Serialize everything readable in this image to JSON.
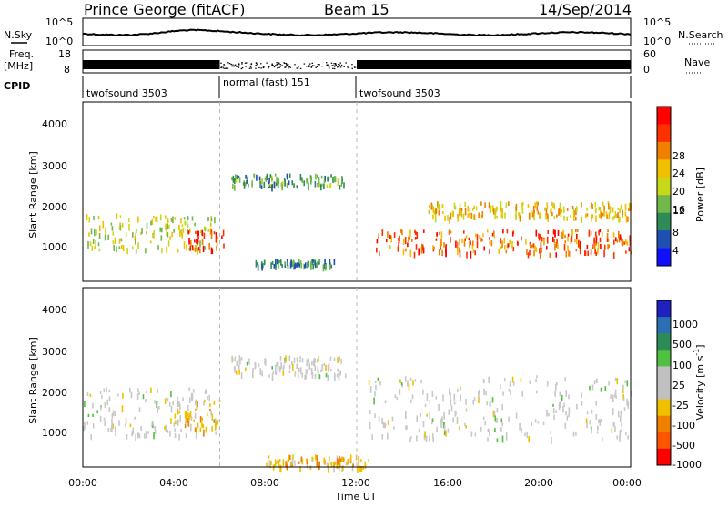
{
  "header": {
    "station": "Prince George (fitACF)",
    "beam": "Beam 15",
    "date": "14/Sep/2014"
  },
  "strip_labels": {
    "nsky": "N.Sky",
    "nsearch": "N.Search",
    "freq_top": "Freq.",
    "freq_unit": "[MHz]",
    "nave": "Nave",
    "cpid": "CPID",
    "nsky_ticks": [
      "10^5",
      "10^0"
    ],
    "nsearch_ticks": [
      "10^5",
      "10^0"
    ],
    "freq_ticks": [
      "18",
      "8"
    ],
    "nave_ticks": [
      "60",
      "0"
    ]
  },
  "cpid_segments": [
    {
      "label": "twofsound 3503",
      "start": 0,
      "end": 6
    },
    {
      "label": "normal (fast) 151",
      "start": 6,
      "end": 12
    },
    {
      "label": "twofsound 3503",
      "start": 12,
      "end": 24
    }
  ],
  "x_axis": {
    "title": "Time UT",
    "ticks": [
      "00:00",
      "04:00",
      "08:00",
      "12:00",
      "16:00",
      "20:00",
      "00:00"
    ],
    "range_hours": [
      0,
      24
    ]
  },
  "panels": {
    "power": {
      "ylabel": "Slant Range [km]",
      "yticks": [
        "4000",
        "3000",
        "2000",
        "1000"
      ],
      "cb_title": "Power [dB]",
      "cb_ticks": [
        "28",
        "24",
        "20",
        "16",
        "12",
        "8",
        "4"
      ]
    },
    "velocity": {
      "ylabel": "Slant Range [km]",
      "yticks": [
        "4000",
        "3000",
        "2000",
        "1000"
      ],
      "cb_title_main": "Velocity [m s",
      "cb_title_sup": "-1",
      "cb_title_end": "]",
      "cb_ticks": [
        "1000",
        "500",
        "100",
        "25",
        "-25",
        "-100",
        "-500",
        "-1000"
      ]
    }
  },
  "colors": {
    "power_scale": [
      "#1010ff",
      "#1f4fb0",
      "#2e8b57",
      "#70b84a",
      "#c8d818",
      "#f0c000",
      "#f08000",
      "#ff3000",
      "#ff0000"
    ],
    "velocity_scale": [
      "#2020c0",
      "#2c6fb0",
      "#2e8b57",
      "#50c040",
      "#c0c0c0",
      "#c0c0c0",
      "#f0c000",
      "#f08000",
      "#ff5500",
      "#ff0000"
    ]
  },
  "chart_data": [
    {
      "type": "heatmap",
      "title": "Prince George (fitACF) Beam 15 14/Sep/2014",
      "quantity": "Power",
      "unit": "dB",
      "xlabel": "Time UT",
      "ylabel": "Slant Range [km]",
      "xlim": [
        0,
        24
      ],
      "ylim": [
        180,
        4700
      ],
      "colorbar": {
        "label": "Power [dB]",
        "range": [
          0,
          32
        ],
        "ticks": [
          4,
          8,
          12,
          16,
          20,
          24,
          28
        ]
      },
      "echo_bands": [
        {
          "t_start": 0.0,
          "t_end": 5.8,
          "range_low": 1000,
          "range_high": 1900,
          "power_db": 16
        },
        {
          "t_start": 4.5,
          "t_end": 6.2,
          "range_low": 1000,
          "range_high": 1500,
          "power_db": 28
        },
        {
          "t_start": 6.5,
          "t_end": 11.5,
          "range_low": 2600,
          "range_high": 2900,
          "power_db": 10
        },
        {
          "t_start": 7.5,
          "t_end": 11.0,
          "range_low": 600,
          "range_high": 750,
          "power_db": 8
        },
        {
          "t_start": 12.8,
          "t_end": 24.0,
          "range_low": 900,
          "range_high": 1500,
          "power_db": 26
        },
        {
          "t_start": 15.0,
          "t_end": 24.0,
          "range_low": 1800,
          "range_high": 2200,
          "power_db": 20
        }
      ]
    },
    {
      "type": "heatmap",
      "quantity": "Velocity",
      "unit": "m s-1",
      "xlabel": "Time UT",
      "ylabel": "Slant Range [km]",
      "xlim": [
        0,
        24
      ],
      "ylim": [
        180,
        4700
      ],
      "colorbar": {
        "label": "Velocity [m s-1]",
        "range": [
          -1000,
          1000
        ],
        "ticks": [
          1000,
          500,
          100,
          25,
          -25,
          -100,
          -500,
          -1000
        ]
      },
      "echo_bands": [
        {
          "t_start": 0.0,
          "t_end": 5.8,
          "range_low": 1000,
          "range_high": 2200,
          "velocity": 0
        },
        {
          "t_start": 4.0,
          "t_end": 6.0,
          "range_low": 1100,
          "range_high": 2000,
          "velocity": -300
        },
        {
          "t_start": 6.5,
          "t_end": 11.5,
          "range_low": 2500,
          "range_high": 3000,
          "velocity": 0
        },
        {
          "t_start": 8.0,
          "t_end": 12.5,
          "range_low": 200,
          "range_high": 500,
          "velocity": -150
        },
        {
          "t_start": 12.5,
          "t_end": 24.0,
          "range_low": 900,
          "range_high": 2500,
          "velocity": 0
        }
      ]
    }
  ]
}
